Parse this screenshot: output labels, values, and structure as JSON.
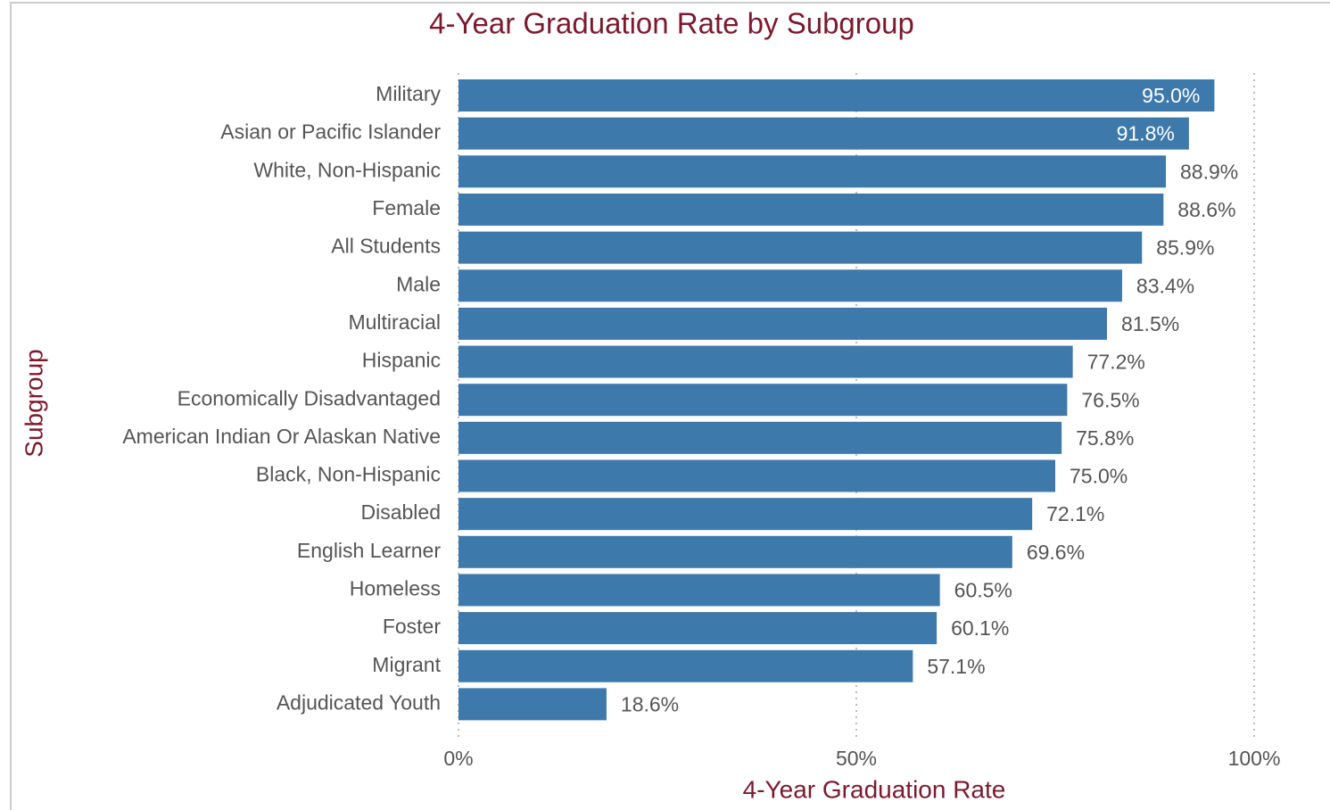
{
  "chart_data": {
    "type": "barh",
    "title": "4-Year Graduation Rate by Subgroup",
    "x_label": "4-Year Graduation Rate",
    "y_label": "Subgroup",
    "categories": [
      "Military",
      "Asian or Pacific Islander",
      "White, Non-Hispanic",
      "Female",
      "All Students",
      "Male",
      "Multiracial",
      "Hispanic",
      "Economically Disadvantaged",
      "American Indian Or Alaskan Native",
      "Black, Non-Hispanic",
      "Disabled",
      "English Learner",
      "Homeless",
      "Foster",
      "Migrant",
      "Adjudicated Youth"
    ],
    "values": [
      95.0,
      91.8,
      88.9,
      88.6,
      85.9,
      83.4,
      81.5,
      77.2,
      76.5,
      75.8,
      75.0,
      72.1,
      69.6,
      60.5,
      60.1,
      57.1,
      18.6
    ],
    "value_labels": [
      "95.0%",
      "91.8%",
      "88.9%",
      "88.6%",
      "85.9%",
      "83.4%",
      "81.5%",
      "77.2%",
      "76.5%",
      "75.8%",
      "75.0%",
      "72.1%",
      "69.6%",
      "60.5%",
      "60.1%",
      "57.1%",
      "18.6%"
    ],
    "color": "#3d79ab",
    "xlim": [
      0,
      100
    ],
    "xticks": [
      {
        "value": 0,
        "label": "0%"
      },
      {
        "value": 50,
        "label": "50%"
      },
      {
        "value": 100,
        "label": "100%"
      }
    ],
    "grid": true
  }
}
